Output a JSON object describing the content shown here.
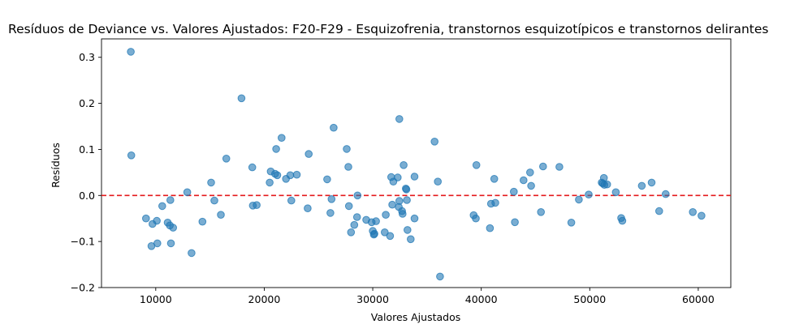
{
  "chart_data": {
    "type": "scatter",
    "title": "Resíduos de Deviance vs. Valores Ajustados: F20-F29 - Esquizofrenia, transtornos esquizotípicos e transtornos delirantes",
    "xlabel": "Valores Ajustados",
    "ylabel": "Resíduos",
    "xlim": [
      5000,
      63000
    ],
    "ylim": [
      -0.2,
      0.34
    ],
    "xticks": [
      10000,
      20000,
      30000,
      40000,
      50000,
      60000
    ],
    "xtick_labels": [
      "10000",
      "20000",
      "30000",
      "40000",
      "50000",
      "60000"
    ],
    "yticks": [
      -0.2,
      -0.1,
      0.0,
      0.1,
      0.2,
      0.3
    ],
    "ytick_labels": [
      "−0.2",
      "−0.1",
      "0.0",
      "0.1",
      "0.2",
      "0.3"
    ],
    "reference_line": {
      "y": 0,
      "color": "#e41a1c",
      "style": "dashed"
    },
    "point_color": "#1f77b4",
    "grid": false,
    "points": [
      [
        7700,
        0.312
      ],
      [
        7750,
        0.087
      ],
      [
        9100,
        -0.05
      ],
      [
        9600,
        -0.11
      ],
      [
        9700,
        -0.062
      ],
      [
        10100,
        -0.055
      ],
      [
        10150,
        -0.104
      ],
      [
        10600,
        -0.023
      ],
      [
        11100,
        -0.059
      ],
      [
        11300,
        -0.065
      ],
      [
        11350,
        -0.01
      ],
      [
        11400,
        -0.104
      ],
      [
        11600,
        -0.07
      ],
      [
        12900,
        0.007
      ],
      [
        13300,
        -0.125
      ],
      [
        14300,
        -0.057
      ],
      [
        15100,
        0.028
      ],
      [
        15400,
        -0.011
      ],
      [
        16000,
        -0.042
      ],
      [
        16500,
        0.08
      ],
      [
        17900,
        0.211
      ],
      [
        18900,
        0.061
      ],
      [
        18950,
        -0.022
      ],
      [
        19300,
        -0.021
      ],
      [
        20500,
        0.028
      ],
      [
        20600,
        0.052
      ],
      [
        21000,
        0.047
      ],
      [
        21100,
        0.101
      ],
      [
        21200,
        0.044
      ],
      [
        21600,
        0.125
      ],
      [
        22000,
        0.036
      ],
      [
        22400,
        0.044
      ],
      [
        22500,
        -0.011
      ],
      [
        23000,
        0.045
      ],
      [
        24000,
        -0.028
      ],
      [
        24100,
        0.09
      ],
      [
        25800,
        0.035
      ],
      [
        26100,
        -0.038
      ],
      [
        26200,
        -0.008
      ],
      [
        26400,
        0.147
      ],
      [
        27600,
        0.101
      ],
      [
        27750,
        0.062
      ],
      [
        27800,
        -0.023
      ],
      [
        28000,
        -0.08
      ],
      [
        28300,
        -0.064
      ],
      [
        28550,
        -0.047
      ],
      [
        28600,
        0.0
      ],
      [
        29400,
        -0.053
      ],
      [
        29900,
        -0.058
      ],
      [
        30000,
        -0.077
      ],
      [
        30100,
        -0.085
      ],
      [
        30150,
        -0.083
      ],
      [
        30300,
        -0.056
      ],
      [
        31100,
        -0.08
      ],
      [
        31200,
        -0.042
      ],
      [
        31600,
        -0.088
      ],
      [
        31700,
        0.04
      ],
      [
        31900,
        0.03
      ],
      [
        31800,
        -0.02
      ],
      [
        32300,
        0.039
      ],
      [
        32400,
        -0.025
      ],
      [
        32450,
        -0.012
      ],
      [
        32450,
        0.166
      ],
      [
        32700,
        -0.034
      ],
      [
        32750,
        -0.04
      ],
      [
        32850,
        0.066
      ],
      [
        33050,
        0.015
      ],
      [
        33100,
        0.013
      ],
      [
        33150,
        -0.01
      ],
      [
        33200,
        -0.075
      ],
      [
        33500,
        -0.095
      ],
      [
        33850,
        0.041
      ],
      [
        33850,
        -0.05
      ],
      [
        35700,
        0.117
      ],
      [
        36000,
        0.03
      ],
      [
        36200,
        -0.176
      ],
      [
        39300,
        -0.043
      ],
      [
        39500,
        -0.05
      ],
      [
        39550,
        0.066
      ],
      [
        40800,
        -0.071
      ],
      [
        40900,
        -0.018
      ],
      [
        41200,
        0.036
      ],
      [
        41300,
        -0.016
      ],
      [
        43000,
        0.008
      ],
      [
        43100,
        -0.058
      ],
      [
        43900,
        0.033
      ],
      [
        44500,
        0.05
      ],
      [
        44600,
        0.021
      ],
      [
        45500,
        -0.036
      ],
      [
        45700,
        0.063
      ],
      [
        47200,
        0.062
      ],
      [
        48300,
        -0.059
      ],
      [
        49000,
        -0.009
      ],
      [
        49900,
        0.002
      ],
      [
        51100,
        0.028
      ],
      [
        51200,
        0.026
      ],
      [
        51300,
        0.038
      ],
      [
        51350,
        0.023
      ],
      [
        51600,
        0.024
      ],
      [
        52400,
        0.007
      ],
      [
        52900,
        -0.049
      ],
      [
        53000,
        -0.055
      ],
      [
        54800,
        0.021
      ],
      [
        55700,
        0.028
      ],
      [
        56400,
        -0.034
      ],
      [
        57000,
        0.003
      ],
      [
        59500,
        -0.036
      ],
      [
        60300,
        -0.044
      ]
    ]
  }
}
